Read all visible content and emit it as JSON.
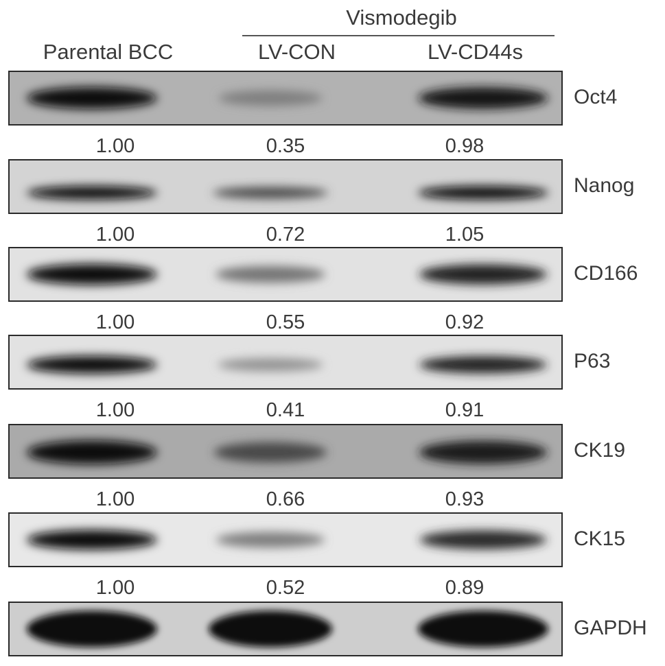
{
  "header": {
    "group_label": "Vismodegib",
    "lanes": [
      "Parental BCC",
      "LV-CON",
      "LV-CD44s"
    ]
  },
  "blots": [
    {
      "marker": "Oct4",
      "values": [
        "1.00",
        "0.35",
        "0.98"
      ],
      "band_intensity": [
        1.0,
        0.35,
        0.98
      ]
    },
    {
      "marker": "Nanog",
      "values": [
        "1.00",
        "0.72",
        "1.05"
      ],
      "band_intensity": [
        1.0,
        0.72,
        1.05
      ]
    },
    {
      "marker": "CD166",
      "values": [
        "1.00",
        "0.55",
        "0.92"
      ],
      "band_intensity": [
        1.0,
        0.55,
        0.92
      ]
    },
    {
      "marker": "P63",
      "values": [
        "1.00",
        "0.41",
        "0.91"
      ],
      "band_intensity": [
        1.0,
        0.41,
        0.91
      ]
    },
    {
      "marker": "CK19",
      "values": [
        "1.00",
        "0.66",
        "0.93"
      ],
      "band_intensity": [
        1.0,
        0.66,
        0.93
      ]
    },
    {
      "marker": "CK15",
      "values": [
        "1.00",
        "0.52",
        "0.89"
      ],
      "band_intensity": [
        1.0,
        0.52,
        0.89
      ]
    },
    {
      "marker": "GAPDH",
      "values": [],
      "band_intensity": [
        1.0,
        1.0,
        1.0
      ]
    }
  ]
}
